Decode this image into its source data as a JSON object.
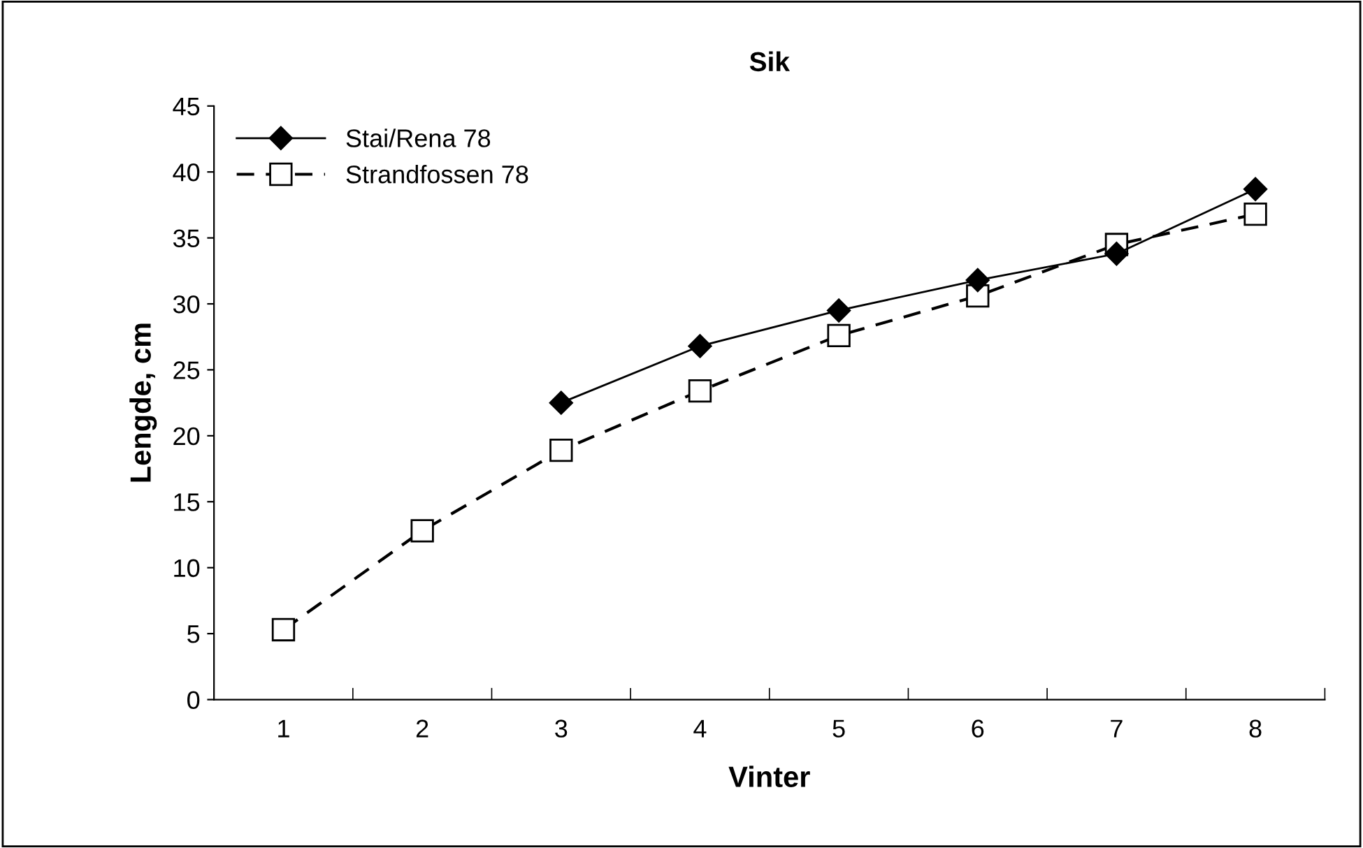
{
  "chart_data": {
    "type": "line",
    "title": "Sik",
    "xlabel": "Vinter",
    "ylabel": "Lengde, cm",
    "categories": [
      "1",
      "2",
      "3",
      "4",
      "5",
      "6",
      "7",
      "8"
    ],
    "series": [
      {
        "name": "Stai/Rena 78",
        "color": "#000000",
        "marker": "diamond",
        "line_style": "solid",
        "values": [
          null,
          null,
          22.5,
          26.8,
          29.5,
          31.8,
          33.8,
          38.7
        ]
      },
      {
        "name": "Strandfossen 78",
        "color": "#000000",
        "marker": "square",
        "line_style": "dashed",
        "values": [
          5.3,
          12.8,
          18.9,
          23.4,
          27.6,
          30.6,
          34.5,
          36.8
        ]
      }
    ],
    "ylim": [
      0,
      45
    ],
    "yticks": [
      0,
      5,
      10,
      15,
      20,
      25,
      30,
      35,
      40,
      45
    ],
    "grid": false,
    "legend": "top left"
  }
}
